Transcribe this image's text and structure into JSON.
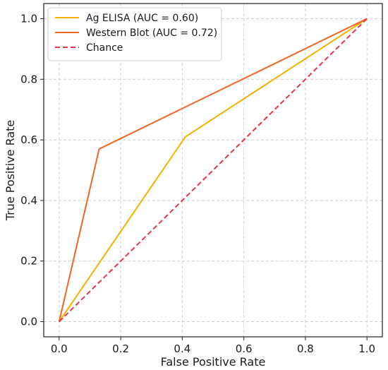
{
  "chart_data": {
    "type": "line",
    "title": "",
    "xlabel": "False Positive Rate",
    "ylabel": "True Positive Rate",
    "xlim": [
      -0.05,
      1.05
    ],
    "ylim": [
      -0.05,
      1.05
    ],
    "xticks": [
      0.0,
      0.2,
      0.4,
      0.6,
      0.8,
      1.0
    ],
    "yticks": [
      0.0,
      0.2,
      0.4,
      0.6,
      0.8,
      1.0
    ],
    "xtick_labels": [
      "0.0",
      "0.2",
      "0.4",
      "0.6",
      "0.8",
      "1.0"
    ],
    "ytick_labels": [
      "0.0",
      "0.2",
      "0.4",
      "0.6",
      "0.8",
      "1.0"
    ],
    "grid": true,
    "legend_position": "top-left",
    "series": [
      {
        "name": "Ag ELISA (AUC = 0.60)",
        "color": "#F5B000",
        "dash": "solid",
        "x": [
          0.0,
          0.41,
          1.0
        ],
        "y": [
          0.0,
          0.61,
          1.0
        ]
      },
      {
        "name": "Western Blot (AUC = 0.72)",
        "color": "#F26522",
        "dash": "solid",
        "x": [
          0.0,
          0.13,
          1.0
        ],
        "y": [
          0.0,
          0.57,
          1.0
        ]
      },
      {
        "name": "Chance",
        "color": "#E8334A",
        "dash": "dashed",
        "x": [
          0.0,
          1.0
        ],
        "y": [
          0.0,
          1.0
        ]
      }
    ]
  }
}
